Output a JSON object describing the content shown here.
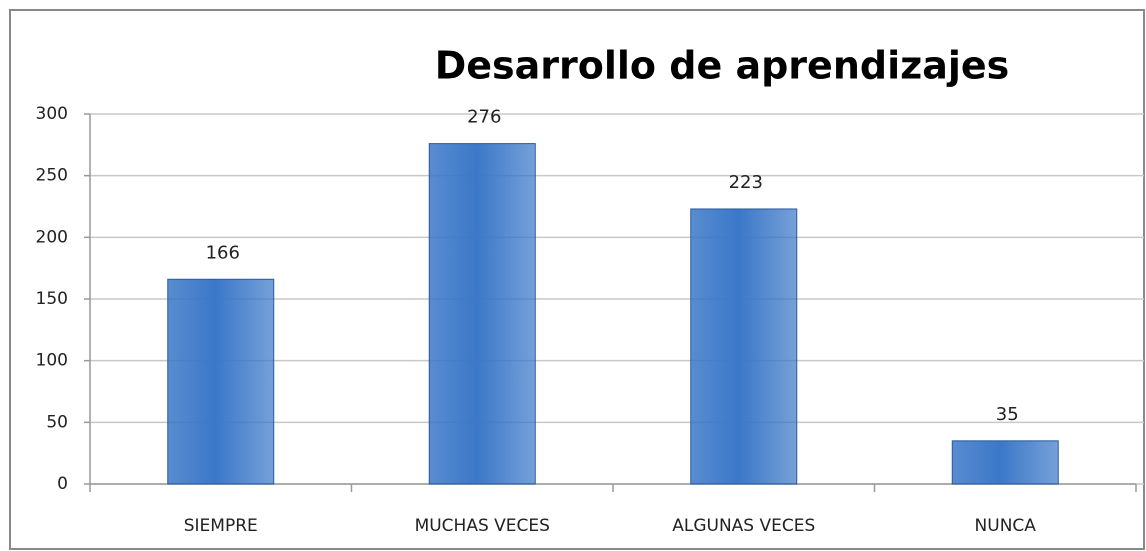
{
  "chart_data": {
    "type": "bar",
    "title": "Desarrollo de aprendizajes",
    "categories": [
      "SIEMPRE",
      "MUCHAS VECES",
      "ALGUNAS VECES",
      "NUNCA"
    ],
    "values": [
      166,
      276,
      223,
      35
    ],
    "color": "#3b78c8",
    "ylim": [
      0,
      300
    ],
    "yticks": [
      0,
      50,
      100,
      150,
      200,
      250,
      300
    ],
    "grid": true
  }
}
